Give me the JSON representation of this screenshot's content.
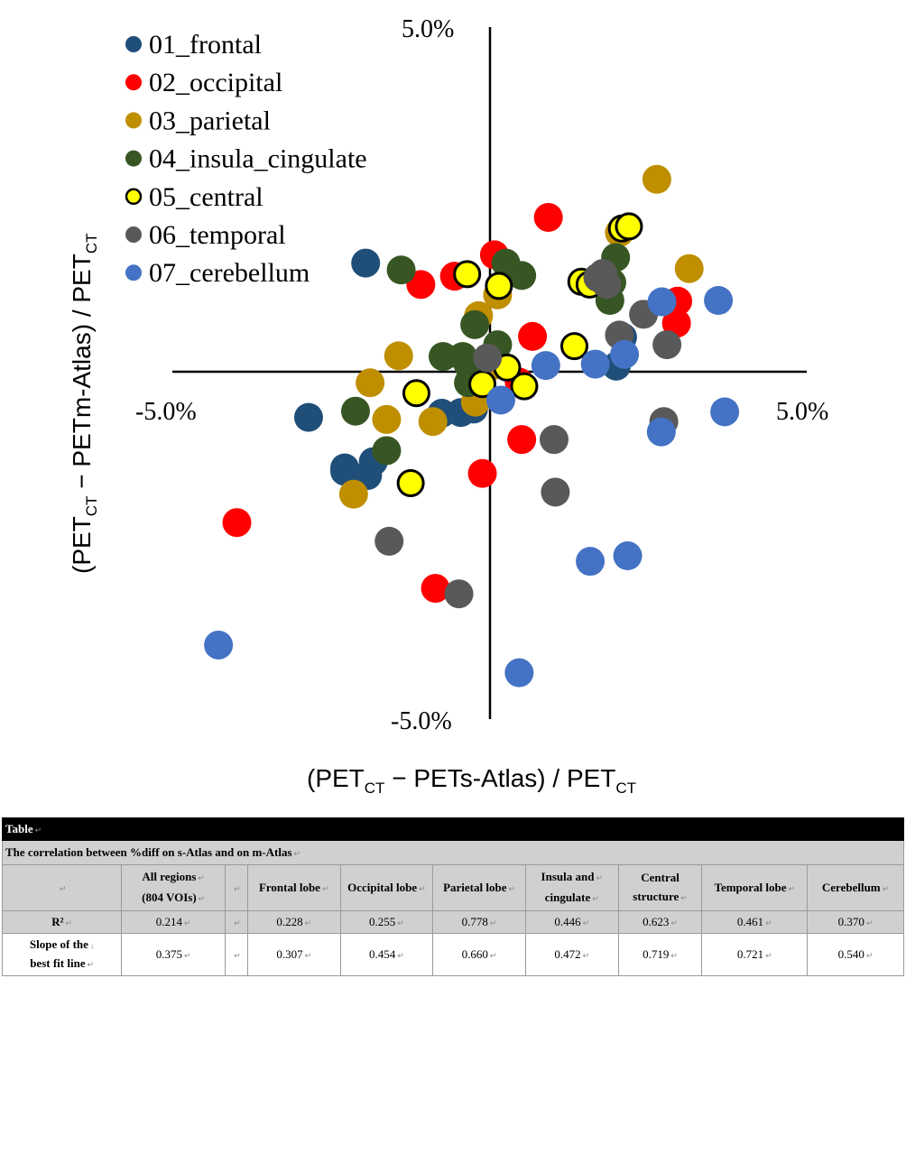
{
  "chart_data": {
    "type": "scatter",
    "title": "",
    "xlabel": "(PETCT − PETs-Atlas) / PETCT",
    "ylabel": "(PETCT − PETm-Atlas) / PETCT",
    "xlim": [
      -5.0,
      5.0
    ],
    "ylim": [
      -5.0,
      5.0
    ],
    "tick_labels": {
      "x_min": "-5.0%",
      "x_max": "5.0%",
      "y_min": "-5.0%",
      "y_max": "5.0%"
    },
    "legend_position": "top-left",
    "series": [
      {
        "name": "01_frontal",
        "color": "#1f4e79",
        "outline": false,
        "x": [
          -1.96,
          -2.86,
          -2.29,
          -2.29,
          -1.84,
          -1.93,
          -0.76,
          -0.46,
          -0.26,
          2.09,
          1.99
        ],
        "y": [
          1.57,
          -0.66,
          -1.39,
          -1.44,
          -1.3,
          -1.5,
          -0.6,
          -0.59,
          -0.54,
          0.5,
          0.08
        ]
      },
      {
        "name": "02_occipital",
        "color": "#ff0000",
        "outline": false,
        "x": [
          -3.99,
          -1.09,
          -0.56,
          0.07,
          0.92,
          0.67,
          2.96,
          2.94,
          0.46,
          -0.86,
          -0.12,
          0.5
        ],
        "y": [
          -2.18,
          1.26,
          1.38,
          1.69,
          2.23,
          0.51,
          1.02,
          0.7,
          -0.15,
          -3.13,
          -1.47,
          -0.98
        ]
      },
      {
        "name": "03_parietal",
        "color": "#bf8f00",
        "outline": false,
        "x": [
          2.04,
          2.63,
          3.14,
          -1.44,
          -1.89,
          -1.63,
          -0.9,
          -0.18,
          0.12,
          0.05,
          -2.15,
          -0.23
        ],
        "y": [
          2.01,
          2.78,
          1.49,
          0.23,
          -0.16,
          -0.69,
          -0.72,
          0.81,
          1.11,
          0.09,
          -1.77,
          -0.44
        ]
      },
      {
        "name": "04_insula_cingulate",
        "color": "#375623",
        "outline": false,
        "x": [
          -1.4,
          -2.12,
          -0.74,
          -0.43,
          -0.34,
          -0.34,
          -0.24,
          0.12,
          0.25,
          0.5,
          1.89,
          1.92,
          1.98,
          -1.63
        ],
        "y": [
          1.47,
          -0.57,
          0.22,
          0.22,
          0.09,
          -0.16,
          0.68,
          0.39,
          1.57,
          1.39,
          1.03,
          1.29,
          1.65,
          -1.14
        ]
      },
      {
        "name": "05_central",
        "color": "#ffff00",
        "outline": true,
        "x": [
          -0.36,
          0.14,
          1.44,
          1.57,
          2.08,
          2.19,
          1.33,
          0.27,
          -0.12,
          0.54,
          -1.16,
          -1.25
        ],
        "y": [
          1.41,
          1.24,
          1.3,
          1.26,
          2.07,
          2.1,
          0.37,
          0.06,
          -0.18,
          -0.21,
          -0.31,
          -1.61
        ]
      },
      {
        "name": "06_temporal",
        "color": "#595959",
        "outline": false,
        "x": -0.06,
        "y": 0.2
      },
      {
        "name": "07_cerebellum",
        "color": "#4472c4",
        "outline": false,
        "x": [
          -4.28,
          0.46,
          1.58,
          2.17,
          0.17,
          0.88,
          1.66,
          2.12,
          2.71,
          3.6,
          2.7,
          3.7
        ],
        "y": [
          -3.95,
          -4.35,
          -2.74,
          -2.66,
          -0.41,
          0.09,
          0.11,
          0.25,
          1.01,
          1.03,
          -0.87,
          -0.58
        ]
      }
    ],
    "series_06_points": {
      "x": [
        -1.59,
        -0.49,
        -0.04,
        1.01,
        1.03,
        1.78,
        1.84,
        2.04,
        2.42,
        2.79,
        2.74,
        1.7
      ],
      "y": [
        -2.45,
        -3.21,
        0.2,
        -0.98,
        -1.74,
        1.42,
        1.26,
        0.53,
        0.83,
        0.39,
        -0.72,
        1.36
      ]
    }
  },
  "table": {
    "title": "Table",
    "subtitle": "The correlation between %diff on s-Atlas and on m-Atlas",
    "columns": [
      "All regions",
      "(804 VOIs)",
      "Frontal lobe",
      "Occipital lobe",
      "Parietal lobe",
      "Insula and",
      "cingulate",
      "Central",
      "structure",
      "Temporal lobe",
      "Cerebellum"
    ],
    "r2_label": "R²",
    "r2_values": [
      "0.214",
      "0.228",
      "0.255",
      "0.778",
      "0.446",
      "0.623",
      "0.461",
      "0.370"
    ],
    "slope_label_1": "Slope of the",
    "slope_label_2": "best fit line",
    "slope_values": [
      "0.375",
      "0.307",
      "0.454",
      "0.660",
      "0.472",
      "0.719",
      "0.721",
      "0.540"
    ]
  }
}
